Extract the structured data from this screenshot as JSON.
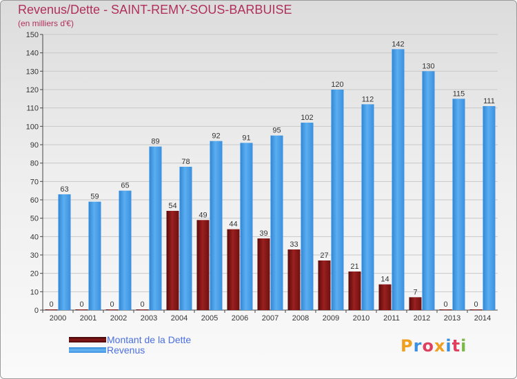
{
  "title": "Revenus/Dette - SAINT-REMY-SOUS-BARBUISE",
  "subtitle": "(en milliers d'€)",
  "colors": {
    "debt": "#7a1212",
    "revenue": "#4a9fe8",
    "title": "#b0305a"
  },
  "legend": {
    "debt_label": "Montant de la Dette",
    "revenue_label": "Revenus"
  },
  "logo_text": "Proxiti",
  "chart_data": {
    "type": "bar",
    "title": "Revenus/Dette - SAINT-REMY-SOUS-BARBUISE",
    "ylabel": "(en milliers d'€)",
    "xlabel": "",
    "ylim": [
      0,
      150
    ],
    "yticks": [
      0,
      10,
      20,
      30,
      40,
      50,
      60,
      70,
      80,
      90,
      100,
      110,
      120,
      130,
      140,
      150
    ],
    "grid": true,
    "legend_position": "bottom-left",
    "categories": [
      "2000",
      "2001",
      "2002",
      "2003",
      "2004",
      "2005",
      "2006",
      "2007",
      "2008",
      "2009",
      "2010",
      "2011",
      "2012",
      "2013",
      "2014"
    ],
    "series": [
      {
        "name": "Montant de la Dette",
        "values": [
          0,
          0,
          0,
          0,
          54,
          49,
          44,
          39,
          33,
          27,
          21,
          14,
          7,
          0,
          0
        ]
      },
      {
        "name": "Revenus",
        "values": [
          63,
          59,
          65,
          89,
          78,
          92,
          91,
          95,
          102,
          120,
          112,
          142,
          130,
          115,
          111
        ]
      }
    ]
  }
}
